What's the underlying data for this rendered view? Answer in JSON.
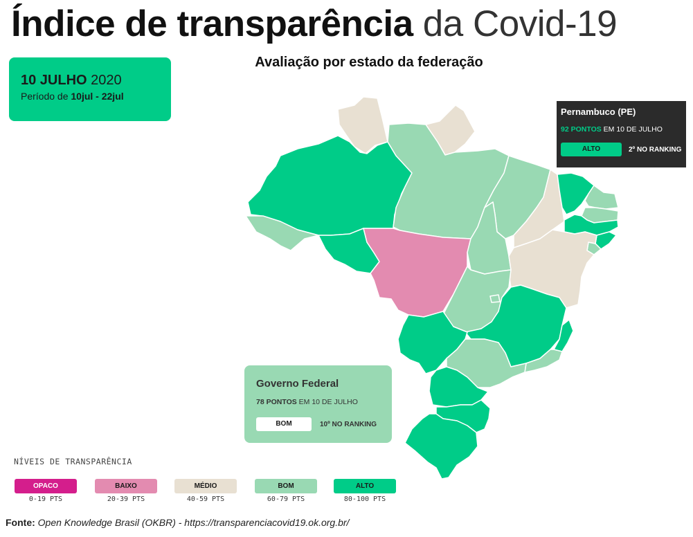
{
  "title": {
    "bold": "Índice de transparência",
    "light": "da Covid-19"
  },
  "subtitle": "Avaliação por estado da federação",
  "date_box": {
    "day_month": "10 JULHO",
    "year": "2020",
    "period_label": "Período de",
    "period_range": "10jul - 22jul"
  },
  "colors": {
    "opaco": "#d41e8c",
    "baixo": "#e38bb0",
    "medio": "#e8e0d2",
    "bom": "#99d9b3",
    "alto": "#00cc88",
    "tooltip_bg": "#2b2b2b",
    "border": "#ffffff"
  },
  "tooltip": {
    "state": "Pernambuco (PE)",
    "points": "92 PONTOS",
    "date_text": "EM 10 DE JULHO",
    "level": "ALTO",
    "ranking": "2º NO RANKING"
  },
  "federal": {
    "name": "Governo Federal",
    "points": "78 PONTOS",
    "date_text": "EM 10 DE JULHO",
    "level": "BOM",
    "ranking": "10º NO RANKING"
  },
  "states": [
    {
      "code": "RR",
      "level": "medio"
    },
    {
      "code": "AP",
      "level": "medio"
    },
    {
      "code": "AM",
      "level": "alto"
    },
    {
      "code": "PA",
      "level": "bom"
    },
    {
      "code": "AC",
      "level": "bom"
    },
    {
      "code": "RO",
      "level": "alto"
    },
    {
      "code": "MT",
      "level": "baixo"
    },
    {
      "code": "MA",
      "level": "bom"
    },
    {
      "code": "TO",
      "level": "bom"
    },
    {
      "code": "PI",
      "level": "medio"
    },
    {
      "code": "CE",
      "level": "alto"
    },
    {
      "code": "RN",
      "level": "bom"
    },
    {
      "code": "PB",
      "level": "bom"
    },
    {
      "code": "PE",
      "level": "alto"
    },
    {
      "code": "AL",
      "level": "alto"
    },
    {
      "code": "SE",
      "level": "bom"
    },
    {
      "code": "BA",
      "level": "medio"
    },
    {
      "code": "GO",
      "level": "bom"
    },
    {
      "code": "DF",
      "level": "bom"
    },
    {
      "code": "MG",
      "level": "alto"
    },
    {
      "code": "ES",
      "level": "alto"
    },
    {
      "code": "RJ",
      "level": "bom"
    },
    {
      "code": "MS",
      "level": "alto"
    },
    {
      "code": "SP",
      "level": "bom"
    },
    {
      "code": "PR",
      "level": "alto"
    },
    {
      "code": "SC",
      "level": "alto"
    },
    {
      "code": "RS",
      "level": "alto"
    }
  ],
  "legend": {
    "title": "NÍVEIS DE TRANSPARÊNCIA",
    "items": [
      {
        "label": "OPACO",
        "range": "0-19 PTS",
        "color": "#d41e8c",
        "text_color": "#ffffff"
      },
      {
        "label": "BAIXO",
        "range": "20-39 PTS",
        "color": "#e38bb0",
        "text_color": "#1a1a1a"
      },
      {
        "label": "MÉDIO",
        "range": "40-59 PTS",
        "color": "#e8e0d2",
        "text_color": "#1a1a1a"
      },
      {
        "label": "BOM",
        "range": "60-79 PTS",
        "color": "#99d9b3",
        "text_color": "#1a1a1a"
      },
      {
        "label": "ALTO",
        "range": "80-100 PTS",
        "color": "#00cc88",
        "text_color": "#1a1a1a"
      }
    ]
  },
  "source": {
    "label": "Fonte:",
    "text": "Open Knowledge Brasil (OKBR) - https://transparenciacovid19.ok.org.br/"
  }
}
